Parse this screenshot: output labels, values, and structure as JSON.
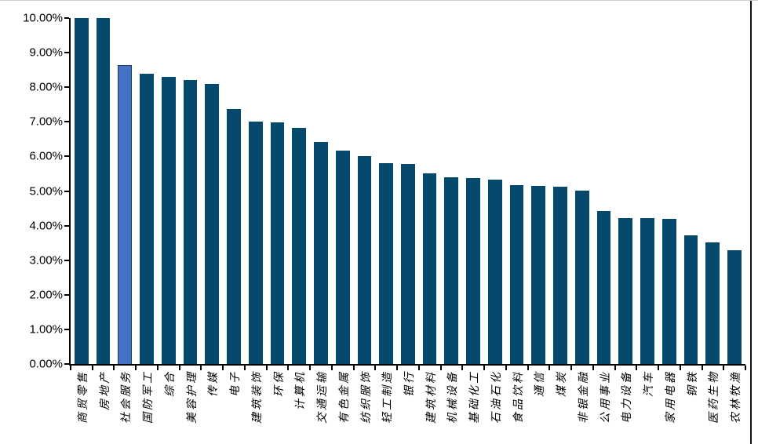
{
  "chart_data": {
    "type": "bar",
    "title": "",
    "xlabel": "",
    "ylabel": "",
    "ylim": [
      0,
      10
    ],
    "y_tick_step": 1,
    "y_tick_labels_top_to_bottom": [
      "10.00%",
      "9.00%",
      "8.00%",
      "7.00%",
      "6.00%",
      "5.00%",
      "4.00%",
      "3.00%",
      "2.00%",
      "1.00%",
      "0.00%"
    ],
    "grid": false,
    "legend": "none",
    "bar_color": "#05496D",
    "highlight_color": "#4472C4",
    "highlight_border_color": "#1F3864",
    "axis_color": "#000000",
    "highlight_index": 2,
    "categories": [
      "商贸零售",
      "房地产",
      "社会服务",
      "国防军工",
      "综合",
      "美容护理",
      "传媒",
      "电子",
      "建筑装饰",
      "环保",
      "计算机",
      "交通运输",
      "有色金属",
      "纺织服饰",
      "轻工制造",
      "银行",
      "建筑材料",
      "机械设备",
      "基础化工",
      "石油石化",
      "食品饮料",
      "通信",
      "煤炭",
      "非银金融",
      "公用事业",
      "电力设备",
      "汽车",
      "家用电器",
      "钢铁",
      "医药生物",
      "农林牧渔"
    ],
    "values": [
      10.0,
      10.0,
      8.65,
      8.4,
      8.29,
      8.22,
      8.1,
      7.38,
      7.0,
      6.99,
      6.83,
      6.42,
      6.16,
      6.02,
      5.8,
      5.79,
      5.51,
      5.39,
      5.38,
      5.33,
      5.17,
      5.15,
      5.12,
      5.02,
      4.43,
      4.21,
      4.21,
      4.19,
      3.71,
      3.52,
      3.29
    ]
  }
}
